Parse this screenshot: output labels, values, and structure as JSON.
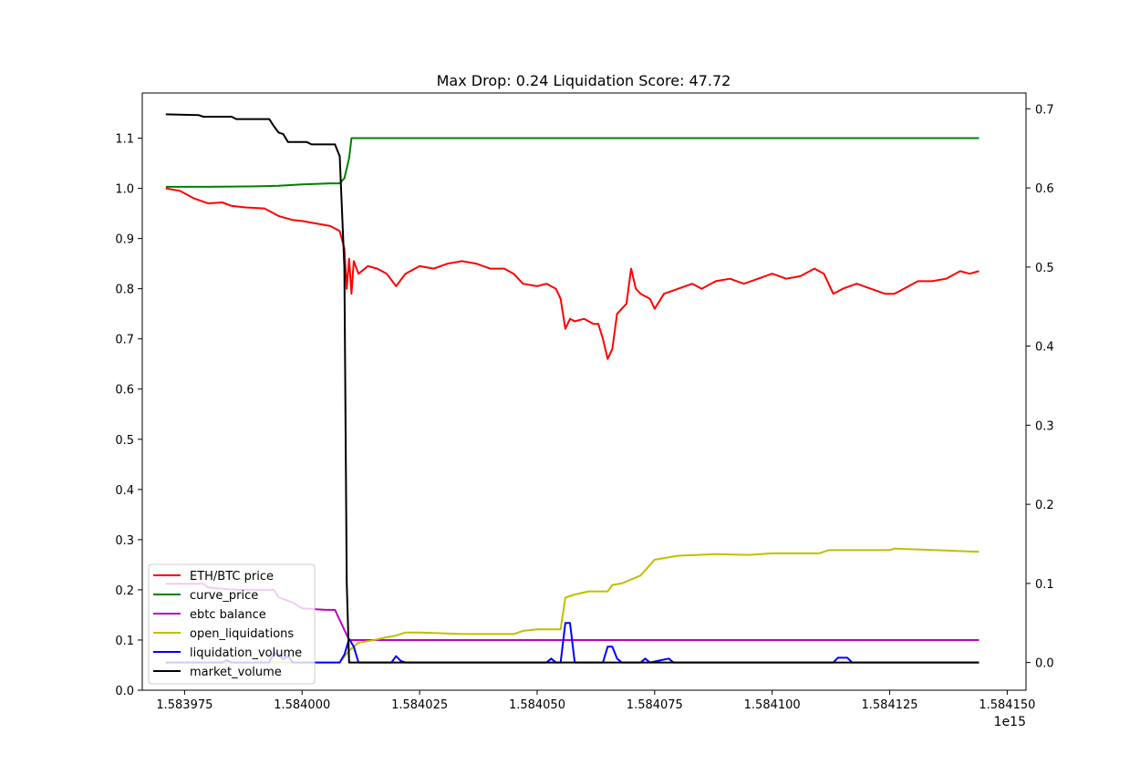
{
  "chart_data": {
    "type": "line",
    "title": "Max Drop: 0.24 Liquidation Score: 47.72",
    "xlabel": "",
    "ylabel": "",
    "x_offset_label": "1e15",
    "xlim": [
      1583966,
      1584154
    ],
    "ylim_left": [
      0.0,
      1.19
    ],
    "ylim_right": [
      -0.035,
      0.72
    ],
    "x_ticks": [
      1583975,
      1584000,
      1584025,
      1584050,
      1584075,
      1584100,
      1584125,
      1584150
    ],
    "x_tick_labels": [
      "1.583975",
      "1.584000",
      "1.584025",
      "1.584050",
      "1.584075",
      "1.584100",
      "1.584125",
      "1.584150"
    ],
    "y_ticks_left": [
      0.0,
      0.1,
      0.2,
      0.3,
      0.4,
      0.5,
      0.6,
      0.7,
      0.8,
      0.9,
      1.0,
      1.1
    ],
    "y_tick_labels_left": [
      "0.0",
      "0.1",
      "0.2",
      "0.3",
      "0.4",
      "0.5",
      "0.6",
      "0.7",
      "0.8",
      "0.9",
      "1.0",
      "1.1"
    ],
    "y_ticks_right": [
      0.0,
      0.1,
      0.2,
      0.3,
      0.4,
      0.5,
      0.6,
      0.7
    ],
    "y_tick_labels_right": [
      "0.0",
      "0.1",
      "0.2",
      "0.3",
      "0.4",
      "0.5",
      "0.6",
      "0.7"
    ],
    "legend_position": "lower-left",
    "grid": false,
    "series": [
      {
        "name": "ETH/BTC price",
        "color": "#ff0000",
        "axis": "left",
        "points": [
          [
            1583971,
            1.0
          ],
          [
            1583974,
            0.995
          ],
          [
            1583977,
            0.98
          ],
          [
            1583980,
            0.97
          ],
          [
            1583983,
            0.972
          ],
          [
            1583985,
            0.965
          ],
          [
            1583988,
            0.962
          ],
          [
            1583992,
            0.96
          ],
          [
            1583995,
            0.945
          ],
          [
            1583998,
            0.937
          ],
          [
            1584000,
            0.935
          ],
          [
            1584003,
            0.93
          ],
          [
            1584006,
            0.925
          ],
          [
            1584008,
            0.915
          ],
          [
            1584009,
            0.88
          ],
          [
            1584009.5,
            0.8
          ],
          [
            1584010,
            0.86
          ],
          [
            1584010.5,
            0.79
          ],
          [
            1584011,
            0.855
          ],
          [
            1584012,
            0.83
          ],
          [
            1584014,
            0.845
          ],
          [
            1584016,
            0.84
          ],
          [
            1584018,
            0.83
          ],
          [
            1584020,
            0.805
          ],
          [
            1584022,
            0.83
          ],
          [
            1584025,
            0.845
          ],
          [
            1584028,
            0.84
          ],
          [
            1584031,
            0.85
          ],
          [
            1584034,
            0.855
          ],
          [
            1584037,
            0.85
          ],
          [
            1584040,
            0.84
          ],
          [
            1584043,
            0.84
          ],
          [
            1584045,
            0.83
          ],
          [
            1584047,
            0.81
          ],
          [
            1584050,
            0.805
          ],
          [
            1584052,
            0.81
          ],
          [
            1584054,
            0.8
          ],
          [
            1584055,
            0.78
          ],
          [
            1584056,
            0.72
          ],
          [
            1584057,
            0.74
          ],
          [
            1584058,
            0.735
          ],
          [
            1584060,
            0.74
          ],
          [
            1584062,
            0.73
          ],
          [
            1584063,
            0.73
          ],
          [
            1584064,
            0.7
          ],
          [
            1584065,
            0.66
          ],
          [
            1584066,
            0.68
          ],
          [
            1584067,
            0.75
          ],
          [
            1584069,
            0.77
          ],
          [
            1584070,
            0.84
          ],
          [
            1584071,
            0.8
          ],
          [
            1584072,
            0.79
          ],
          [
            1584074,
            0.78
          ],
          [
            1584075,
            0.76
          ],
          [
            1584077,
            0.79
          ],
          [
            1584080,
            0.8
          ],
          [
            1584083,
            0.81
          ],
          [
            1584085,
            0.8
          ],
          [
            1584088,
            0.815
          ],
          [
            1584091,
            0.82
          ],
          [
            1584094,
            0.81
          ],
          [
            1584097,
            0.82
          ],
          [
            1584100,
            0.83
          ],
          [
            1584103,
            0.82
          ],
          [
            1584106,
            0.825
          ],
          [
            1584109,
            0.84
          ],
          [
            1584111,
            0.83
          ],
          [
            1584113,
            0.79
          ],
          [
            1584115,
            0.8
          ],
          [
            1584118,
            0.81
          ],
          [
            1584121,
            0.8
          ],
          [
            1584124,
            0.79
          ],
          [
            1584126,
            0.79
          ],
          [
            1584128,
            0.8
          ],
          [
            1584131,
            0.815
          ],
          [
            1584134,
            0.815
          ],
          [
            1584137,
            0.82
          ],
          [
            1584140,
            0.835
          ],
          [
            1584142,
            0.83
          ],
          [
            1584144,
            0.835
          ]
        ]
      },
      {
        "name": "curve_price",
        "color": "#008000",
        "axis": "left",
        "points": [
          [
            1583971,
            1.003
          ],
          [
            1583980,
            1.003
          ],
          [
            1583990,
            1.004
          ],
          [
            1583995,
            1.005
          ],
          [
            1584000,
            1.008
          ],
          [
            1584006,
            1.01
          ],
          [
            1584008,
            1.01
          ],
          [
            1584009,
            1.02
          ],
          [
            1584010,
            1.06
          ],
          [
            1584010.5,
            1.1
          ],
          [
            1584144,
            1.1
          ]
        ]
      },
      {
        "name": "ebtc balance",
        "color": "#bf00bf",
        "axis": "left",
        "points": [
          [
            1583971,
            0.212
          ],
          [
            1583979,
            0.212
          ],
          [
            1583980,
            0.205
          ],
          [
            1583983,
            0.202
          ],
          [
            1583986,
            0.2
          ],
          [
            1583994,
            0.2
          ],
          [
            1583995,
            0.185
          ],
          [
            1583998,
            0.175
          ],
          [
            1584000,
            0.163
          ],
          [
            1584005,
            0.16
          ],
          [
            1584007,
            0.16
          ],
          [
            1584008,
            0.14
          ],
          [
            1584009,
            0.12
          ],
          [
            1584010,
            0.1
          ],
          [
            1584144,
            0.1
          ]
        ]
      },
      {
        "name": "open_liquidations",
        "color": "#bfbf00",
        "axis": "right",
        "points": [
          [
            1583971,
            0.0
          ],
          [
            1584008,
            0.0
          ],
          [
            1584010,
            0.015
          ],
          [
            1584012,
            0.025
          ],
          [
            1584015,
            0.028
          ],
          [
            1584018,
            0.032
          ],
          [
            1584020,
            0.034
          ],
          [
            1584022,
            0.038
          ],
          [
            1584025,
            0.038
          ],
          [
            1584035,
            0.036
          ],
          [
            1584045,
            0.036
          ],
          [
            1584047,
            0.04
          ],
          [
            1584050,
            0.042
          ],
          [
            1584055,
            0.042
          ],
          [
            1584056,
            0.082
          ],
          [
            1584058,
            0.086
          ],
          [
            1584061,
            0.09
          ],
          [
            1584065,
            0.09
          ],
          [
            1584066,
            0.098
          ],
          [
            1584068,
            0.1
          ],
          [
            1584070,
            0.105
          ],
          [
            1584072,
            0.11
          ],
          [
            1584075,
            0.13
          ],
          [
            1584080,
            0.135
          ],
          [
            1584088,
            0.137
          ],
          [
            1584095,
            0.136
          ],
          [
            1584100,
            0.138
          ],
          [
            1584110,
            0.138
          ],
          [
            1584112,
            0.142
          ],
          [
            1584125,
            0.142
          ],
          [
            1584126,
            0.144
          ],
          [
            1584135,
            0.142
          ],
          [
            1584144,
            0.14
          ]
        ]
      },
      {
        "name": "liquidation_volume",
        "color": "#0000ff",
        "axis": "right",
        "points": [
          [
            1583971,
            0.0
          ],
          [
            1583983,
            0.0
          ],
          [
            1583984,
            0.003
          ],
          [
            1583985,
            0.0
          ],
          [
            1583993,
            0.0
          ],
          [
            1583994,
            0.012
          ],
          [
            1583995,
            0.01
          ],
          [
            1583996,
            0.004
          ],
          [
            1583997,
            0.008
          ],
          [
            1583998,
            0.0
          ],
          [
            1584008,
            0.0
          ],
          [
            1584009,
            0.01
          ],
          [
            1584010,
            0.03
          ],
          [
            1584011,
            0.02
          ],
          [
            1584012,
            0.0
          ],
          [
            1584019,
            0.0
          ],
          [
            1584020,
            0.008
          ],
          [
            1584021,
            0.002
          ],
          [
            1584022,
            0.0
          ],
          [
            1584052,
            0.0
          ],
          [
            1584053,
            0.005
          ],
          [
            1584054,
            0.0
          ],
          [
            1584055,
            0.0
          ],
          [
            1584056,
            0.05
          ],
          [
            1584057,
            0.05
          ],
          [
            1584058,
            0.0
          ],
          [
            1584064,
            0.0
          ],
          [
            1584065,
            0.02
          ],
          [
            1584066,
            0.02
          ],
          [
            1584067,
            0.005
          ],
          [
            1584068,
            0.0
          ],
          [
            1584072,
            0.0
          ],
          [
            1584073,
            0.005
          ],
          [
            1584074,
            0.0
          ],
          [
            1584078,
            0.005
          ],
          [
            1584079,
            0.0
          ],
          [
            1584113,
            0.0
          ],
          [
            1584114,
            0.006
          ],
          [
            1584116,
            0.006
          ],
          [
            1584117,
            0.0
          ],
          [
            1584144,
            0.0
          ]
        ]
      },
      {
        "name": "market_volume",
        "color": "#000000",
        "axis": "right",
        "points": [
          [
            1583971,
            0.693
          ],
          [
            1583978,
            0.692
          ],
          [
            1583979,
            0.69
          ],
          [
            1583985,
            0.69
          ],
          [
            1583986,
            0.687
          ],
          [
            1583993,
            0.687
          ],
          [
            1583994,
            0.678
          ],
          [
            1583995,
            0.67
          ],
          [
            1583996,
            0.668
          ],
          [
            1583997,
            0.658
          ],
          [
            1584001,
            0.658
          ],
          [
            1584002,
            0.655
          ],
          [
            1584007,
            0.655
          ],
          [
            1584008,
            0.64
          ],
          [
            1584009,
            0.5
          ],
          [
            1584009.5,
            0.1
          ],
          [
            1584010,
            0.0
          ],
          [
            1584144,
            0.0
          ]
        ]
      }
    ]
  }
}
